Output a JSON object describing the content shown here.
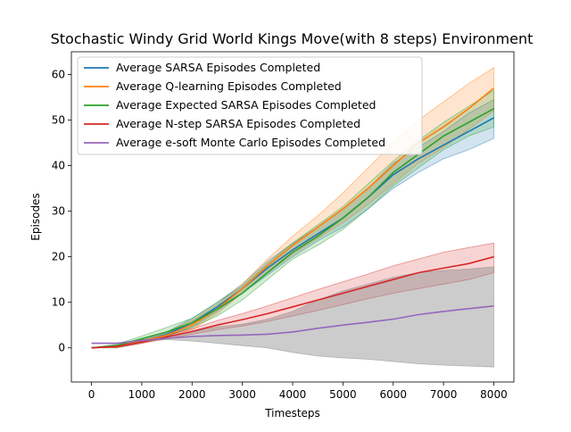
{
  "chart_data": {
    "type": "line",
    "title": "Stochastic Windy Grid World Kings Move(with 8 steps) Environment",
    "xlabel": "Timesteps",
    "ylabel": "Episodes",
    "xlim": [
      -400,
      8400
    ],
    "ylim": [
      -7.5,
      65
    ],
    "xticks": [
      0,
      1000,
      2000,
      3000,
      4000,
      5000,
      6000,
      7000,
      8000
    ],
    "xtick_labels": [
      "0",
      "1000",
      "2000",
      "3000",
      "4000",
      "5000",
      "6000",
      "7000",
      "8000"
    ],
    "yticks": [
      0,
      10,
      20,
      30,
      40,
      50,
      60
    ],
    "ytick_labels": [
      "0",
      "10",
      "20",
      "30",
      "40",
      "50",
      "60"
    ],
    "grid": false,
    "legend_position": "upper-left",
    "x": [
      0,
      500,
      1000,
      1500,
      2000,
      2500,
      3000,
      3500,
      4000,
      4500,
      5000,
      5500,
      6000,
      6500,
      7000,
      7500,
      8000
    ],
    "series": [
      {
        "name": "Average SARSA Episodes Completed",
        "color": "#1f77b4",
        "values": [
          0,
          0.3,
          1.5,
          3,
          5.5,
          9,
          13,
          17.5,
          21.5,
          25,
          28.5,
          33,
          38,
          41.5,
          44.5,
          47.5,
          50.5
        ],
        "lower": [
          0,
          0,
          1,
          2.5,
          4.5,
          8,
          12,
          16,
          20,
          23.5,
          26.5,
          30.5,
          35,
          38.5,
          41.5,
          43.5,
          46
        ],
        "upper": [
          0,
          0.5,
          2,
          3.5,
          6.5,
          10,
          14,
          19,
          23,
          26.5,
          30.5,
          35,
          40.5,
          44,
          47.5,
          51.5,
          54.5
        ]
      },
      {
        "name": "Average Q-learning Episodes Completed",
        "color": "#ff7f0e",
        "values": [
          0,
          0.3,
          1.5,
          2.8,
          5,
          8.5,
          13,
          18,
          22.5,
          26.5,
          30.5,
          35,
          40,
          45,
          48.5,
          52.5,
          57
        ],
        "lower": [
          0,
          0,
          1,
          2.3,
          4,
          7.5,
          12,
          16.5,
          20.5,
          24,
          27.5,
          31.5,
          36,
          40.5,
          44,
          48,
          52
        ],
        "upper": [
          0,
          0.6,
          2,
          3.5,
          6,
          9.5,
          14,
          19.5,
          24.5,
          29,
          34,
          39.5,
          45,
          50,
          54,
          58,
          61.5
        ]
      },
      {
        "name": "Average Expected SARSA Episodes Completed",
        "color": "#2ca02c",
        "values": [
          0,
          0.5,
          2,
          3.5,
          5.5,
          8.5,
          12,
          16.5,
          21,
          24.5,
          28.5,
          33,
          38.5,
          42.5,
          46.5,
          49.5,
          52.5
        ],
        "lower": [
          0,
          0.2,
          1.3,
          2.6,
          4.5,
          7,
          10.5,
          15,
          19.5,
          22.5,
          26,
          30.5,
          35.5,
          39.5,
          43.5,
          46.5,
          48.5
        ],
        "upper": [
          0,
          0.8,
          2.6,
          4.5,
          6.5,
          10,
          13.5,
          18.5,
          23,
          27,
          31,
          36,
          41,
          45.5,
          49.5,
          53,
          56.5
        ]
      },
      {
        "name": "Average N-step SARSA Episodes Completed",
        "color": "#d62728",
        "values": [
          0,
          0.3,
          1.3,
          2.4,
          3.6,
          5,
          6.2,
          7.5,
          9,
          10.5,
          12,
          13.5,
          15,
          16.5,
          17.5,
          18.5,
          20
        ],
        "lower": [
          0,
          0.1,
          1,
          2,
          3,
          4,
          4.8,
          5.8,
          7,
          8.2,
          9.5,
          10.8,
          12,
          13,
          14,
          15,
          16.5
        ],
        "upper": [
          0,
          0.6,
          1.6,
          2.8,
          4.2,
          6,
          7.5,
          9.2,
          11,
          12.8,
          14.5,
          16.2,
          18,
          19.5,
          21,
          22,
          23
        ]
      },
      {
        "name": "Average e-soft Monte Carlo Episodes Completed",
        "color": "#9467bd",
        "values": [
          1,
          1,
          1.6,
          2.1,
          2.5,
          2.7,
          2.8,
          3,
          3.5,
          4.3,
          5,
          5.6,
          6.3,
          7.3,
          8,
          8.6,
          9.2
        ],
        "lower": [
          1,
          1,
          1.4,
          1.8,
          1.5,
          1,
          0.5,
          0,
          -1,
          -1.8,
          -2.2,
          -2.5,
          -3,
          -3.5,
          -3.8,
          -4,
          -4.2
        ],
        "upper": [
          1,
          1,
          1.8,
          2.5,
          3.5,
          4.6,
          5.2,
          6.3,
          8,
          10.5,
          12.5,
          14,
          15.5,
          16.5,
          17,
          17.3,
          17.8
        ]
      }
    ]
  }
}
